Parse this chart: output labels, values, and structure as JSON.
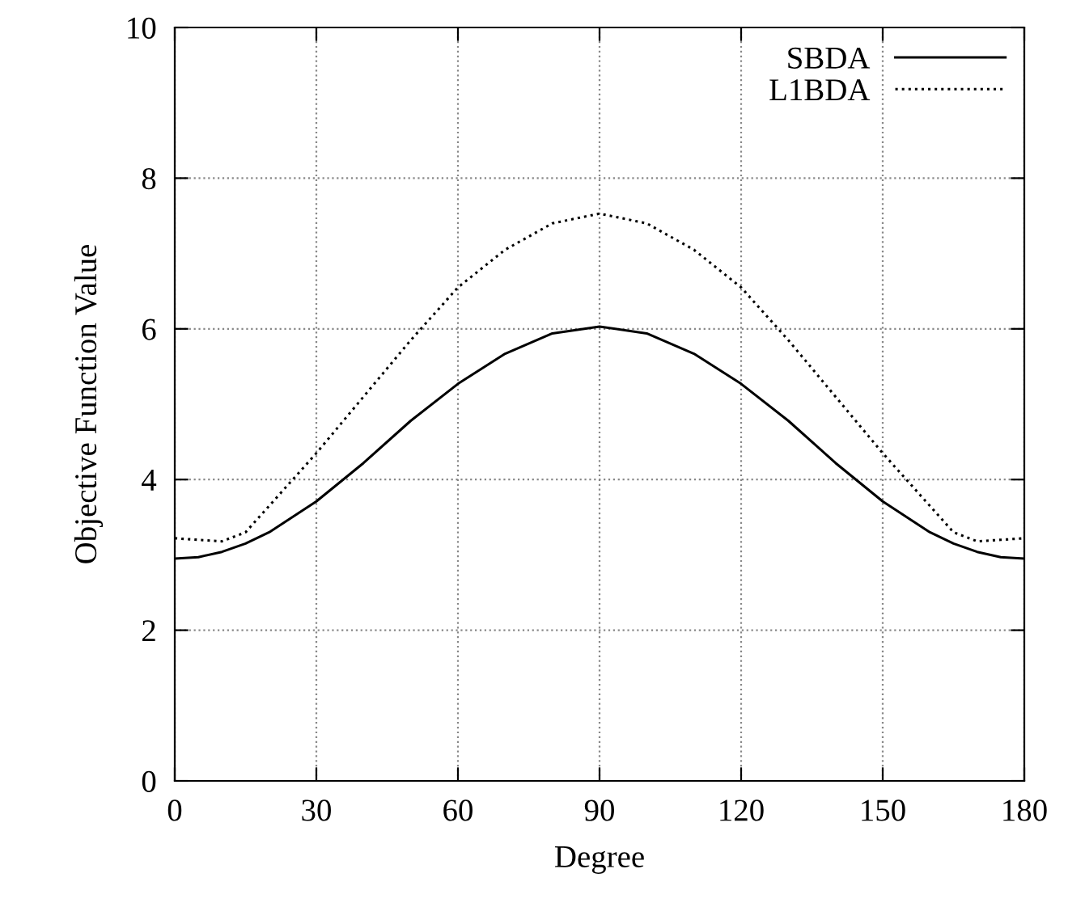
{
  "chart_data": {
    "type": "line",
    "xlabel": "Degree",
    "ylabel": "Objective Function Value",
    "x": [
      0,
      5,
      10,
      15,
      20,
      30,
      40,
      50,
      60,
      70,
      80,
      90,
      100,
      110,
      120,
      130,
      140,
      150,
      160,
      165,
      170,
      175,
      180
    ],
    "series": [
      {
        "name": "SBDA",
        "color": "#000000",
        "line_style": "solid",
        "values": [
          2.95,
          2.97,
          3.04,
          3.15,
          3.3,
          3.71,
          4.22,
          4.78,
          5.27,
          5.67,
          5.94,
          6.03,
          5.94,
          5.67,
          5.27,
          4.78,
          4.22,
          3.71,
          3.3,
          3.15,
          3.04,
          2.97,
          2.95
        ]
      },
      {
        "name": "L1BDA",
        "color": "#000000",
        "line_style": "dotted",
        "values": [
          3.22,
          3.2,
          3.18,
          3.3,
          3.65,
          4.35,
          5.1,
          5.85,
          6.55,
          7.05,
          7.4,
          7.53,
          7.4,
          7.05,
          6.55,
          5.85,
          5.1,
          4.35,
          3.65,
          3.3,
          3.18,
          3.2,
          3.22
        ]
      }
    ],
    "xlim": [
      0,
      180
    ],
    "xticks": [
      0,
      30,
      60,
      90,
      120,
      150,
      180
    ],
    "ylim": [
      0,
      10
    ],
    "yticks": [
      0,
      2,
      4,
      6,
      8,
      10
    ],
    "grid": true,
    "legend": "top right",
    "marker": "none"
  }
}
